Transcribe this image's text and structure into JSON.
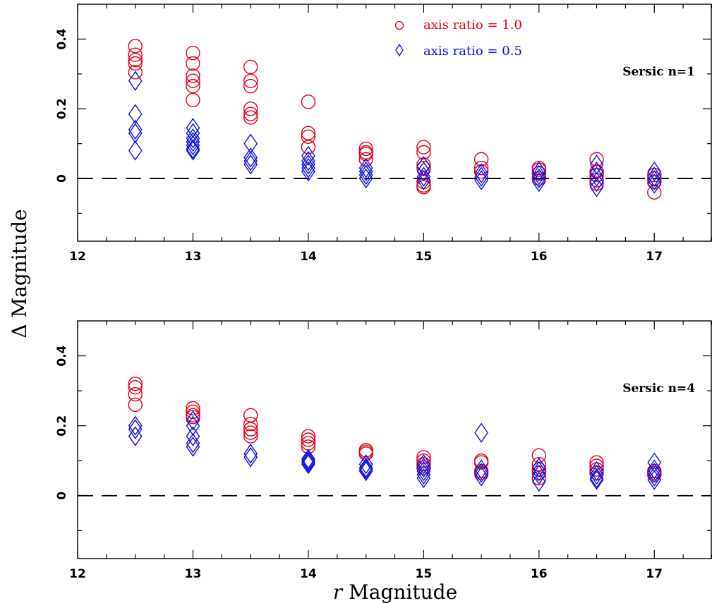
{
  "colors": {
    "ratio_1": "#e8001a",
    "ratio_05": "#1010e0",
    "axis": "#000000"
  },
  "ylabel": "Δ Magnitude",
  "xlabel_italic": "r",
  "xlabel_rest": " Magnitude",
  "legend": {
    "ratio_1": "axis ratio = 1.0",
    "ratio_05": "axis ratio = 0.5"
  },
  "chart_data": [
    {
      "type": "scatter",
      "panel_label": "Sersic n=1",
      "xlim": [
        12,
        17.5
      ],
      "ylim": [
        -0.18,
        0.5
      ],
      "xticks": [
        12,
        13,
        14,
        15,
        16,
        17
      ],
      "yticks": [
        0,
        0.2,
        0.4
      ],
      "ytick_labels": [
        "0",
        "0.2",
        "0.4"
      ],
      "reference_line": 0,
      "series": [
        {
          "name": "axis ratio = 1.0",
          "marker": "circle",
          "points": [
            [
              12.5,
              0.38
            ],
            [
              12.5,
              0.355
            ],
            [
              12.5,
              0.34
            ],
            [
              12.5,
              0.33
            ],
            [
              12.5,
              0.305
            ],
            [
              13,
              0.36
            ],
            [
              13,
              0.33
            ],
            [
              13,
              0.295
            ],
            [
              13,
              0.28
            ],
            [
              13,
              0.265
            ],
            [
              13,
              0.225
            ],
            [
              13.5,
              0.32
            ],
            [
              13.5,
              0.28
            ],
            [
              13.5,
              0.265
            ],
            [
              13.5,
              0.2
            ],
            [
              13.5,
              0.185
            ],
            [
              13.5,
              0.175
            ],
            [
              14,
              0.22
            ],
            [
              14,
              0.13
            ],
            [
              14,
              0.12
            ],
            [
              14,
              0.09
            ],
            [
              14.5,
              0.085
            ],
            [
              14.5,
              0.075
            ],
            [
              14.5,
              0.07
            ],
            [
              14.5,
              0.055
            ],
            [
              15,
              0.09
            ],
            [
              15,
              0.075
            ],
            [
              15,
              0.04
            ],
            [
              15,
              0.03
            ],
            [
              15,
              -0.01
            ],
            [
              15,
              -0.02
            ],
            [
              15,
              -0.025
            ],
            [
              15.5,
              0.055
            ],
            [
              15.5,
              0.03
            ],
            [
              15.5,
              0.02
            ],
            [
              16,
              0.03
            ],
            [
              16,
              0.025
            ],
            [
              16,
              0.015
            ],
            [
              16,
              0.0
            ],
            [
              16.5,
              0.055
            ],
            [
              16.5,
              0.02
            ],
            [
              16.5,
              0.01
            ],
            [
              16.5,
              -0.005
            ],
            [
              16.5,
              -0.015
            ],
            [
              17,
              0.01
            ],
            [
              17,
              0.0
            ],
            [
              17,
              -0.01
            ],
            [
              17,
              -0.04
            ]
          ]
        },
        {
          "name": "axis ratio = 0.5",
          "marker": "diamond",
          "points": [
            [
              12.5,
              0.28
            ],
            [
              12.5,
              0.185
            ],
            [
              12.5,
              0.14
            ],
            [
              12.5,
              0.13
            ],
            [
              12.5,
              0.08
            ],
            [
              13,
              0.145
            ],
            [
              13,
              0.13
            ],
            [
              13,
              0.115
            ],
            [
              13,
              0.105
            ],
            [
              13,
              0.095
            ],
            [
              13,
              0.085
            ],
            [
              13,
              0.08
            ],
            [
              13.5,
              0.1
            ],
            [
              13.5,
              0.06
            ],
            [
              13.5,
              0.05
            ],
            [
              13.5,
              0.04
            ],
            [
              14,
              0.065
            ],
            [
              14,
              0.05
            ],
            [
              14,
              0.04
            ],
            [
              14,
              0.03
            ],
            [
              14,
              0.02
            ],
            [
              14.5,
              0.03
            ],
            [
              14.5,
              0.02
            ],
            [
              14.5,
              0.01
            ],
            [
              14.5,
              0.0
            ],
            [
              15,
              0.035
            ],
            [
              15,
              0.02
            ],
            [
              15,
              0.005
            ],
            [
              15,
              -0.005
            ],
            [
              15.5,
              0.015
            ],
            [
              15.5,
              0.005
            ],
            [
              15.5,
              -0.005
            ],
            [
              16,
              0.02
            ],
            [
              16,
              0.01
            ],
            [
              16,
              0.0
            ],
            [
              16,
              -0.01
            ],
            [
              16.5,
              0.04
            ],
            [
              16.5,
              0.02
            ],
            [
              16.5,
              0.005
            ],
            [
              16.5,
              -0.01
            ],
            [
              16.5,
              -0.025
            ],
            [
              17,
              0.02
            ],
            [
              17,
              0.005
            ],
            [
              17,
              -0.005
            ],
            [
              17,
              -0.015
            ]
          ]
        }
      ]
    },
    {
      "type": "scatter",
      "panel_label": "Sersic n=4",
      "xlim": [
        12,
        17.5
      ],
      "ylim": [
        -0.18,
        0.5
      ],
      "xticks": [
        12,
        13,
        14,
        15,
        16,
        17
      ],
      "yticks": [
        0,
        0.2,
        0.4
      ],
      "ytick_labels": [
        "0",
        "0.2",
        "0.4"
      ],
      "reference_line": 0,
      "series": [
        {
          "name": "axis ratio = 1.0",
          "marker": "circle",
          "points": [
            [
              12.5,
              0.32
            ],
            [
              12.5,
              0.31
            ],
            [
              12.5,
              0.29
            ],
            [
              12.5,
              0.26
            ],
            [
              13,
              0.25
            ],
            [
              13,
              0.24
            ],
            [
              13,
              0.23
            ],
            [
              13,
              0.225
            ],
            [
              13.5,
              0.23
            ],
            [
              13.5,
              0.205
            ],
            [
              13.5,
              0.19
            ],
            [
              13.5,
              0.18
            ],
            [
              13.5,
              0.17
            ],
            [
              14,
              0.17
            ],
            [
              14,
              0.16
            ],
            [
              14,
              0.15
            ],
            [
              14,
              0.14
            ],
            [
              14.5,
              0.13
            ],
            [
              14.5,
              0.125
            ],
            [
              14.5,
              0.12
            ],
            [
              15,
              0.11
            ],
            [
              15,
              0.1
            ],
            [
              15,
              0.09
            ],
            [
              15,
              0.08
            ],
            [
              15.5,
              0.1
            ],
            [
              15.5,
              0.095
            ],
            [
              15.5,
              0.07
            ],
            [
              15.5,
              0.065
            ],
            [
              16,
              0.115
            ],
            [
              16,
              0.09
            ],
            [
              16,
              0.075
            ],
            [
              16,
              0.065
            ],
            [
              16,
              0.05
            ],
            [
              16.5,
              0.095
            ],
            [
              16.5,
              0.085
            ],
            [
              16.5,
              0.075
            ],
            [
              16.5,
              0.065
            ],
            [
              17,
              0.07
            ],
            [
              17,
              0.065
            ],
            [
              17,
              0.06
            ]
          ]
        },
        {
          "name": "axis ratio = 0.5",
          "marker": "diamond",
          "points": [
            [
              12.5,
              0.2
            ],
            [
              12.5,
              0.19
            ],
            [
              12.5,
              0.17
            ],
            [
              13,
              0.215
            ],
            [
              13,
              0.2
            ],
            [
              13,
              0.17
            ],
            [
              13,
              0.15
            ],
            [
              13,
              0.14
            ],
            [
              13.5,
              0.12
            ],
            [
              13.5,
              0.11
            ],
            [
              14,
              0.105
            ],
            [
              14,
              0.1
            ],
            [
              14,
              0.095
            ],
            [
              14,
              0.09
            ],
            [
              14.5,
              0.09
            ],
            [
              14.5,
              0.08
            ],
            [
              14.5,
              0.075
            ],
            [
              14.5,
              0.07
            ],
            [
              15,
              0.09
            ],
            [
              15,
              0.08
            ],
            [
              15,
              0.07
            ],
            [
              15,
              0.06
            ],
            [
              15,
              0.05
            ],
            [
              15.5,
              0.18
            ],
            [
              15.5,
              0.075
            ],
            [
              15.5,
              0.065
            ],
            [
              15.5,
              0.055
            ],
            [
              16,
              0.08
            ],
            [
              16,
              0.07
            ],
            [
              16,
              0.06
            ],
            [
              16,
              0.04
            ],
            [
              16.5,
              0.07
            ],
            [
              16.5,
              0.06
            ],
            [
              16.5,
              0.05
            ],
            [
              16.5,
              0.045
            ],
            [
              17,
              0.095
            ],
            [
              17,
              0.075
            ],
            [
              17,
              0.065
            ],
            [
              17,
              0.055
            ],
            [
              17,
              0.045
            ]
          ]
        }
      ]
    }
  ]
}
